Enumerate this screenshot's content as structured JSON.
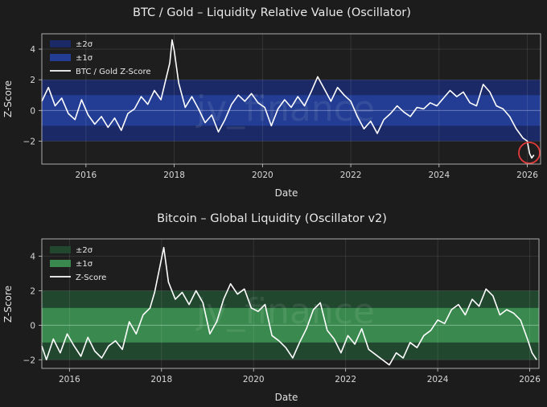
{
  "chart_data": [
    {
      "type": "line",
      "title": "BTC / Gold – Liquidity Relative Value (Oscillator)",
      "xlabel": "Date",
      "ylabel": "Z-Score",
      "xlim": [
        2015.0,
        2026.3
      ],
      "ylim": [
        -3.5,
        5.0
      ],
      "xticks": [
        2016,
        2018,
        2020,
        2022,
        2024,
        2026
      ],
      "yticks": [
        4,
        2,
        0,
        -2
      ],
      "band_color_outer": "#1b2a66",
      "band_color_inner": "#223d93",
      "legend": [
        "±2σ",
        "±1σ",
        "BTC / Gold Z-Score"
      ],
      "watermark": "jv_finance",
      "annotation": "circle around latest low near -3",
      "series": [
        {
          "name": "BTC / Gold Z-Score",
          "x": [
            2015.0,
            2015.15,
            2015.3,
            2015.45,
            2015.6,
            2015.75,
            2015.9,
            2016.05,
            2016.2,
            2016.35,
            2016.5,
            2016.65,
            2016.8,
            2016.95,
            2017.1,
            2017.25,
            2017.4,
            2017.55,
            2017.7,
            2017.8,
            2017.9,
            2017.95,
            2018.0,
            2018.1,
            2018.25,
            2018.4,
            2018.55,
            2018.7,
            2018.85,
            2019.0,
            2019.15,
            2019.3,
            2019.45,
            2019.6,
            2019.75,
            2019.9,
            2020.05,
            2020.2,
            2020.35,
            2020.5,
            2020.65,
            2020.8,
            2020.95,
            2021.1,
            2021.25,
            2021.4,
            2021.55,
            2021.7,
            2021.85,
            2022.0,
            2022.15,
            2022.3,
            2022.45,
            2022.6,
            2022.75,
            2022.9,
            2023.05,
            2023.2,
            2023.35,
            2023.5,
            2023.65,
            2023.8,
            2023.95,
            2024.1,
            2024.25,
            2024.4,
            2024.55,
            2024.7,
            2024.85,
            2025.0,
            2025.15,
            2025.3,
            2025.45,
            2025.6,
            2025.75,
            2025.9,
            2026.0,
            2026.05,
            2026.1,
            2026.15
          ],
          "y": [
            0.6,
            1.5,
            0.3,
            0.8,
            -0.2,
            -0.6,
            0.7,
            -0.3,
            -0.9,
            -0.4,
            -1.1,
            -0.5,
            -1.3,
            -0.2,
            0.1,
            0.9,
            0.4,
            1.3,
            0.7,
            1.9,
            3.1,
            4.6,
            3.9,
            1.8,
            0.2,
            0.9,
            0.1,
            -0.8,
            -0.3,
            -1.4,
            -0.6,
            0.4,
            1.0,
            0.6,
            1.1,
            0.5,
            0.2,
            -1.0,
            0.1,
            0.7,
            0.2,
            0.9,
            0.3,
            1.2,
            2.2,
            1.4,
            0.6,
            1.5,
            1.0,
            0.6,
            -0.4,
            -1.2,
            -0.7,
            -1.5,
            -0.6,
            -0.2,
            0.3,
            -0.1,
            -0.4,
            0.2,
            0.1,
            0.5,
            0.3,
            0.8,
            1.3,
            0.9,
            1.2,
            0.5,
            0.3,
            1.7,
            1.2,
            0.3,
            0.1,
            -0.4,
            -1.2,
            -1.8,
            -2.0,
            -2.8,
            -3.1,
            -2.9
          ]
        }
      ]
    },
    {
      "type": "line",
      "title": "Bitcoin – Global Liquidity (Oscillator v2)",
      "xlabel": "Date",
      "ylabel": "Z-Score",
      "xlim": [
        2015.4,
        2026.2
      ],
      "ylim": [
        -2.5,
        5.0
      ],
      "xticks": [
        2016,
        2018,
        2020,
        2022,
        2024,
        2026
      ],
      "yticks": [
        4,
        2,
        0,
        -2
      ],
      "band_color_outer": "#22472f",
      "band_color_inner": "#3a8a4f",
      "legend": [
        "±2σ",
        "±1σ",
        "Z-Score"
      ],
      "watermark": "jv_finance",
      "series": [
        {
          "name": "Z-Score",
          "x": [
            2015.4,
            2015.5,
            2015.65,
            2015.8,
            2015.95,
            2016.1,
            2016.25,
            2016.4,
            2016.55,
            2016.7,
            2016.85,
            2017.0,
            2017.15,
            2017.3,
            2017.45,
            2017.6,
            2017.75,
            2017.85,
            2017.95,
            2018.05,
            2018.15,
            2018.3,
            2018.45,
            2018.6,
            2018.75,
            2018.9,
            2019.05,
            2019.2,
            2019.35,
            2019.5,
            2019.65,
            2019.8,
            2019.95,
            2020.1,
            2020.25,
            2020.4,
            2020.55,
            2020.7,
            2020.85,
            2021.0,
            2021.15,
            2021.3,
            2021.45,
            2021.6,
            2021.75,
            2021.9,
            2022.05,
            2022.2,
            2022.35,
            2022.5,
            2022.65,
            2022.8,
            2022.95,
            2023.1,
            2023.25,
            2023.4,
            2023.55,
            2023.7,
            2023.85,
            2024.0,
            2024.15,
            2024.3,
            2024.45,
            2024.6,
            2024.75,
            2024.9,
            2025.05,
            2025.2,
            2025.35,
            2025.5,
            2025.65,
            2025.8,
            2025.95,
            2026.05,
            2026.15
          ],
          "y": [
            -1.2,
            -2.0,
            -0.8,
            -1.6,
            -0.5,
            -1.2,
            -1.8,
            -0.7,
            -1.5,
            -1.9,
            -1.2,
            -0.9,
            -1.4,
            0.2,
            -0.5,
            0.6,
            1.0,
            1.9,
            3.2,
            4.5,
            2.5,
            1.5,
            1.9,
            1.2,
            2.0,
            1.3,
            -0.5,
            0.2,
            1.5,
            2.4,
            1.8,
            2.1,
            1.0,
            0.8,
            1.2,
            -0.6,
            -0.9,
            -1.3,
            -1.9,
            -1.0,
            -0.2,
            0.9,
            1.3,
            -0.3,
            -0.8,
            -1.6,
            -0.6,
            -1.1,
            -0.2,
            -1.4,
            -1.7,
            -2.0,
            -2.3,
            -1.6,
            -1.9,
            -1.0,
            -1.3,
            -0.6,
            -0.3,
            0.3,
            0.1,
            0.9,
            1.2,
            0.6,
            1.5,
            1.1,
            2.1,
            1.7,
            0.6,
            0.9,
            0.7,
            0.3,
            -0.8,
            -1.6,
            -2.0
          ]
        }
      ]
    }
  ]
}
